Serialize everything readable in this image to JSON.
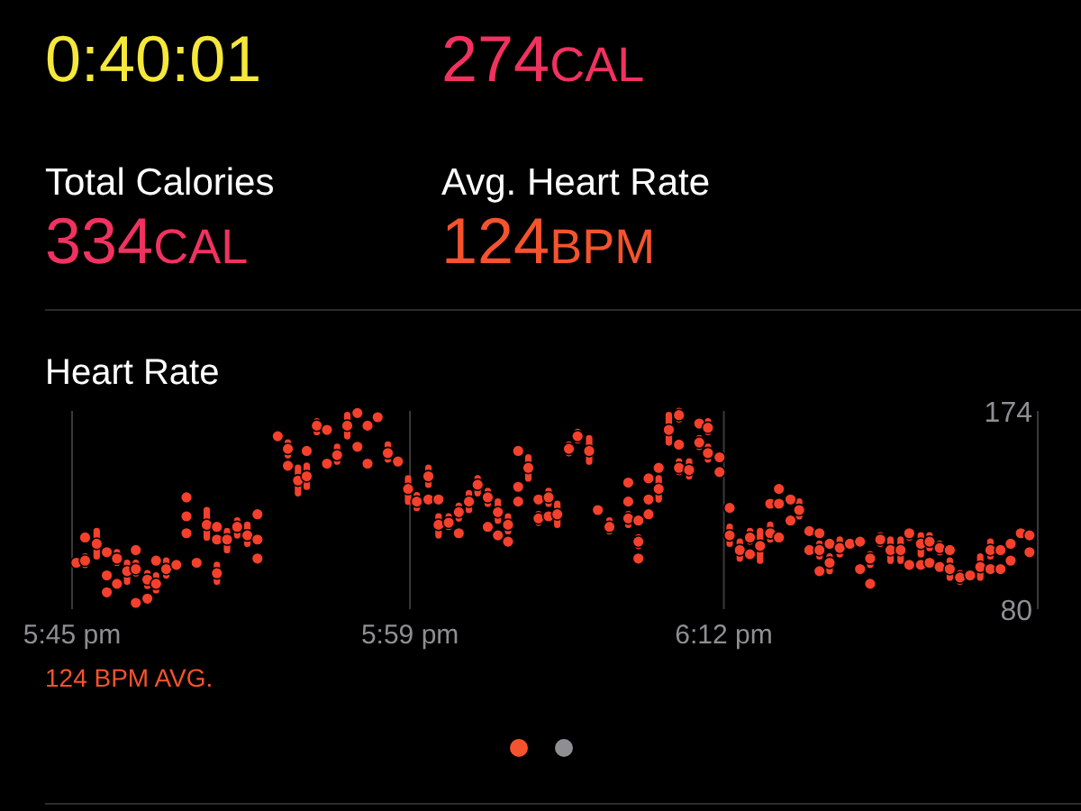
{
  "chart_data": [
    {
      "type": "other",
      "annotations": [
        "0:40:01",
        "274CAL",
        "Total Calories",
        "Avg. Heart Rate",
        "334CAL",
        "124BPM"
      ]
    },
    {
      "type": "scatter",
      "title": "Heart Rate",
      "annotations": [
        "124 BPM AVG."
      ],
      "grid": "x",
      "xlim": [
        17.75,
        18.4167
      ],
      "xticks": [
        {
          "value": 17.75,
          "label": "5:45 pm"
        },
        {
          "value": 17.9833,
          "label": "5:59 pm"
        },
        {
          "value": 18.2,
          "label": "6:12 pm"
        }
      ],
      "ylim": [
        80,
        174
      ],
      "yticks": [
        80,
        174
      ],
      "series": [
        {
          "color": "#f5402c",
          "x": [
            17.753,
            17.759,
            17.759,
            17.767,
            17.774,
            17.774,
            17.774,
            17.781,
            17.781,
            17.788,
            17.794,
            17.794,
            17.794,
            17.802,
            17.802,
            17.808,
            17.808,
            17.815,
            17.822,
            17.829,
            17.829,
            17.829,
            17.836,
            17.843,
            17.85,
            17.85,
            17.85,
            17.857,
            17.864,
            17.871,
            17.878,
            17.878,
            17.878,
            17.892,
            17.899,
            17.899,
            17.906,
            17.912,
            17.912,
            17.919,
            17.926,
            17.926,
            17.933,
            17.94,
            17.947,
            17.947,
            17.954,
            17.954,
            17.961,
            17.968,
            17.975,
            17.982,
            17.988,
            17.996,
            17.996,
            18.003,
            18.003,
            18.01,
            18.017,
            18.017,
            18.024,
            18.03,
            18.037,
            18.037,
            18.044,
            18.044,
            18.051,
            18.051,
            18.058,
            18.058,
            18.058,
            18.065,
            18.072,
            18.072,
            18.079,
            18.079,
            18.085,
            18.093,
            18.099,
            18.107,
            18.113,
            18.121,
            18.134,
            18.134,
            18.134,
            18.141,
            18.141,
            18.141,
            18.148,
            18.148,
            18.148,
            18.155,
            18.155,
            18.162,
            18.169,
            18.169,
            18.169,
            18.176,
            18.183,
            18.183,
            18.189,
            18.189,
            18.197,
            18.197,
            18.204,
            18.204,
            18.211,
            18.218,
            18.218,
            18.225,
            18.232,
            18.232,
            18.238,
            18.238,
            18.238,
            18.246,
            18.246,
            18.252,
            18.259,
            18.259,
            18.266,
            18.266,
            18.266,
            18.273,
            18.273,
            18.28,
            18.287,
            18.294,
            18.294,
            18.301,
            18.301,
            18.308,
            18.315,
            18.322,
            18.328,
            18.328,
            18.336,
            18.336,
            18.342,
            18.342,
            18.349,
            18.349,
            18.356,
            18.356,
            18.363,
            18.37,
            18.377,
            18.384,
            18.384,
            18.391,
            18.391,
            18.398,
            18.398,
            18.405,
            18.411,
            18.411
          ],
          "values": [
            102,
            114,
            103,
            111,
            107,
            96,
            88,
            104,
            92,
            98,
            108,
            99,
            83,
            94,
            85,
            103,
            92,
            99,
            101,
            133,
            124,
            116,
            102,
            120,
            119,
            113,
            97,
            113,
            119,
            115,
            125,
            113,
            104,
            162,
            156,
            148,
            141,
            155,
            143,
            167,
            165,
            149,
            153,
            167,
            173,
            157,
            167,
            149,
            171,
            154,
            150,
            137,
            131,
            143,
            132,
            120,
            132,
            121,
            126,
            116,
            131,
            139,
            133,
            119,
            126,
            115,
            120,
            112,
            155,
            138,
            131,
            147,
            132,
            123,
            133,
            124,
            125,
            156,
            162,
            155,
            127,
            119,
            140,
            131,
            123,
            122,
            112,
            104,
            142,
            132,
            125,
            147,
            137,
            165,
            172,
            158,
            147,
            146,
            168,
            159,
            166,
            154,
            152,
            145,
            128,
            115,
            108,
            114,
            106,
            110,
            130,
            116,
            137,
            130,
            114,
            132,
            122,
            127,
            117,
            108,
            116,
            108,
            98,
            111,
            102,
            109,
            111,
            112,
            99,
            104,
            92,
            113,
            108,
            108,
            116,
            101,
            111,
            101,
            112,
            102,
            109,
            100,
            108,
            99,
            95,
            96,
            100,
            108,
            99,
            108,
            99,
            111,
            103,
            116,
            115,
            107
          ],
          "errors": [
            null,
            null,
            [
              101,
              105
            ],
            [
              105,
              117
            ],
            null,
            null,
            null,
            [
              102,
              107
            ],
            null,
            [
              93,
              102
            ],
            null,
            [
              97,
              102
            ],
            null,
            [
              91,
              97
            ],
            null,
            null,
            [
              89,
              96
            ],
            [
              96,
              103
            ],
            null,
            null,
            null,
            null,
            null,
            [
              114,
              127
            ],
            null,
            null,
            [
              93,
              101
            ],
            [
              108,
              117
            ],
            [
              115,
              122
            ],
            [
              111,
              120
            ],
            null,
            null,
            null,
            null,
            [
              153,
              159
            ],
            null,
            [
              135,
              147
            ],
            null,
            [
              138,
              148
            ],
            [
              164,
              169
            ],
            null,
            null,
            [
              150,
              157
            ],
            [
              162,
              172
            ],
            null,
            null,
            null,
            null,
            null,
            [
              151,
              158
            ],
            null,
            [
              131,
              142
            ],
            [
              128,
              134
            ],
            [
              139,
              147
            ],
            null,
            [
              115,
              124
            ],
            null,
            [
              119,
              124
            ],
            [
              123,
              129
            ],
            null,
            [
              127,
              135
            ],
            [
              135,
              142
            ],
            [
              130,
              136
            ],
            null,
            [
              122,
              131
            ],
            null,
            [
              117,
              124
            ],
            null,
            null,
            null,
            null,
            [
              142,
              152
            ],
            null,
            [
              121,
              125
            ],
            [
              130,
              136
            ],
            null,
            [
              120,
              130
            ],
            [
              154,
              158
            ],
            [
              160,
              164
            ],
            [
              150,
              161
            ],
            null,
            [
              117,
              122
            ],
            null,
            null,
            [
              120,
              125
            ],
            null,
            [
              110,
              114
            ],
            null,
            null,
            null,
            null,
            null,
            [
              132,
              142
            ],
            [
              159,
              172
            ],
            [
              170,
              174
            ],
            null,
            [
              145,
              150
            ],
            [
              143,
              150
            ],
            null,
            [
              157,
              161
            ],
            [
              164,
              169
            ],
            [
              151,
              157
            ],
            null,
            null,
            null,
            [
              111,
              119
            ],
            [
              104,
              112
            ],
            [
              112,
              117
            ],
            null,
            [
              103,
              117
            ],
            null,
            [
              113,
              120
            ],
            null,
            null,
            null,
            null,
            null,
            [
              124,
              131
            ],
            null,
            null,
            null,
            [
              105,
              111
            ],
            null,
            null,
            [
              98,
              105
            ],
            [
              106,
              113
            ],
            null,
            null,
            null,
            [
              101,
              106
            ],
            null,
            [
              111,
              115
            ],
            [
              103,
              113
            ],
            [
              103,
              113
            ],
            [
              114,
              117
            ],
            null,
            [
              106,
              115
            ],
            null,
            [
              109,
              115
            ],
            null,
            [
              107,
              111
            ],
            null,
            null,
            [
              95,
              103
            ],
            [
              93,
              97
            ],
            null,
            [
              95,
              105
            ],
            [
              105,
              112
            ],
            null,
            null,
            null,
            null,
            null,
            null,
            null,
            null
          ]
        }
      ]
    }
  ]
}
